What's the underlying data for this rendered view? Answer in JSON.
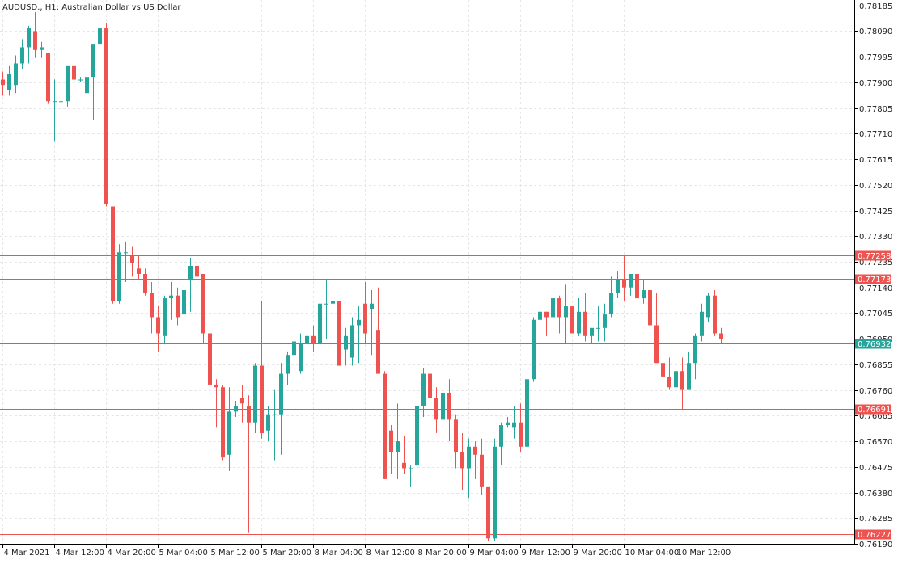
{
  "header": {
    "symbol": "AUDUSD.",
    "timeframe": "H1:",
    "description": "Australian Dollar vs US Dollar"
  },
  "colors": {
    "bull": "#26a69a",
    "bear": "#ef5350",
    "grid": "#e6e6e6",
    "axis": "#000000",
    "level_line": "#ef5350",
    "bid_line": "#26a69a"
  },
  "chart_data": {
    "type": "candlestick",
    "title": "AUDUSD., H1:  Australian Dollar vs US Dollar",
    "ylim": [
      0.7619,
      0.7819
    ],
    "grid": true,
    "y_ticks": [
      "0.78185",
      "0.78090",
      "0.77995",
      "0.77900",
      "0.77805",
      "0.77710",
      "0.77615",
      "0.77520",
      "0.77425",
      "0.77330",
      "0.77235",
      "0.77140",
      "0.77045",
      "0.76950",
      "0.76855",
      "0.76760",
      "0.76665",
      "0.76570",
      "0.76475",
      "0.76380",
      "0.76285",
      "0.76190"
    ],
    "x_ticks": [
      {
        "label": "4 Mar 2021",
        "index": 0
      },
      {
        "label": "4 Mar 12:00",
        "index": 8
      },
      {
        "label": "4 Mar 20:00",
        "index": 16
      },
      {
        "label": "5 Mar 04:00",
        "index": 24
      },
      {
        "label": "5 Mar 12:00",
        "index": 32
      },
      {
        "label": "5 Mar 20:00",
        "index": 40
      },
      {
        "label": "8 Mar 04:00",
        "index": 48
      },
      {
        "label": "8 Mar 12:00",
        "index": 56
      },
      {
        "label": "8 Mar 20:00",
        "index": 64
      },
      {
        "label": "9 Mar 04:00",
        "index": 72
      },
      {
        "label": "9 Mar 12:00",
        "index": 80
      },
      {
        "label": "9 Mar 20:00",
        "index": 88
      },
      {
        "label": "10 Mar 04:00",
        "index": 96
      },
      {
        "label": "10 Mar 12:00",
        "index": 104
      }
    ],
    "levels": [
      {
        "value": 0.77258,
        "label": "0.77258",
        "kind": "resistance"
      },
      {
        "value": 0.77173,
        "label": "0.77173",
        "kind": "resistance"
      },
      {
        "value": 0.76932,
        "label": "0.76932",
        "kind": "bid"
      },
      {
        "value": 0.76691,
        "label": "0.76691",
        "kind": "support"
      },
      {
        "value": 0.76227,
        "label": "0.76227",
        "kind": "support"
      }
    ],
    "candles": [
      [
        0.7791,
        0.7794,
        0.7785,
        0.7789
      ],
      [
        0.7787,
        0.7796,
        0.7785,
        0.7793
      ],
      [
        0.7789,
        0.78,
        0.7786,
        0.7797
      ],
      [
        0.7797,
        0.7806,
        0.7795,
        0.7803
      ],
      [
        0.7803,
        0.7811,
        0.7797,
        0.781
      ],
      [
        0.7809,
        0.7816,
        0.7799,
        0.7802
      ],
      [
        0.7802,
        0.7805,
        0.7799,
        0.7803
      ],
      [
        0.7801,
        0.7801,
        0.7782,
        0.7783
      ],
      [
        0.7783,
        0.7791,
        0.7768,
        0.7783
      ],
      [
        0.7783,
        0.7792,
        0.7769,
        0.7783
      ],
      [
        0.7783,
        0.7795,
        0.7781,
        0.7796
      ],
      [
        0.7796,
        0.78,
        0.7778,
        0.7791
      ],
      [
        0.7791,
        0.7792,
        0.779,
        0.7791
      ],
      [
        0.7786,
        0.7795,
        0.7775,
        0.7792
      ],
      [
        0.7792,
        0.7803,
        0.7776,
        0.7804
      ],
      [
        0.7804,
        0.7812,
        0.7802,
        0.781
      ],
      [
        0.781,
        0.7812,
        0.7744,
        0.7745
      ],
      [
        0.7744,
        0.7744,
        0.7708,
        0.7709
      ],
      [
        0.7709,
        0.773,
        0.7708,
        0.7727
      ],
      [
        0.7727,
        0.7731,
        0.7716,
        0.7727
      ],
      [
        0.7726,
        0.7729,
        0.7718,
        0.7723
      ],
      [
        0.7721,
        0.7726,
        0.7717,
        0.7719
      ],
      [
        0.7719,
        0.7721,
        0.7711,
        0.7712
      ],
      [
        0.7712,
        0.7716,
        0.7697,
        0.7703
      ],
      [
        0.7703,
        0.7707,
        0.769,
        0.7697
      ],
      [
        0.7696,
        0.7711,
        0.7693,
        0.771
      ],
      [
        0.771,
        0.7716,
        0.7702,
        0.7711
      ],
      [
        0.7711,
        0.7714,
        0.77,
        0.7703
      ],
      [
        0.7704,
        0.7714,
        0.7701,
        0.7713
      ],
      [
        0.7717,
        0.7725,
        0.7705,
        0.7722
      ],
      [
        0.7722,
        0.7724,
        0.7712,
        0.7718
      ],
      [
        0.7719,
        0.7719,
        0.7693,
        0.7697
      ],
      [
        0.7697,
        0.77,
        0.7671,
        0.7678
      ],
      [
        0.7678,
        0.768,
        0.7662,
        0.7677
      ],
      [
        0.7677,
        0.7678,
        0.765,
        0.7651
      ],
      [
        0.7652,
        0.7677,
        0.7646,
        0.7668
      ],
      [
        0.7668,
        0.7672,
        0.7666,
        0.767
      ],
      [
        0.7673,
        0.7678,
        0.7664,
        0.7671
      ],
      [
        0.767,
        0.7674,
        0.7623,
        0.7664
      ],
      [
        0.7664,
        0.7686,
        0.766,
        0.7685
      ],
      [
        0.7685,
        0.7709,
        0.7658,
        0.766
      ],
      [
        0.7661,
        0.767,
        0.7657,
        0.7667
      ],
      [
        0.7667,
        0.7676,
        0.765,
        0.7667
      ],
      [
        0.7667,
        0.7686,
        0.7652,
        0.7682
      ],
      [
        0.7682,
        0.769,
        0.7678,
        0.7689
      ],
      [
        0.7689,
        0.7695,
        0.7674,
        0.7694
      ],
      [
        0.7683,
        0.7697,
        0.7682,
        0.7693
      ],
      [
        0.7693,
        0.7697,
        0.769,
        0.7696
      ],
      [
        0.7696,
        0.77,
        0.769,
        0.7693
      ],
      [
        0.7693,
        0.7717,
        0.7693,
        0.7708
      ],
      [
        0.7708,
        0.7717,
        0.7695,
        0.7708
      ],
      [
        0.7708,
        0.7708,
        0.77,
        0.7709
      ],
      [
        0.7709,
        0.7709,
        0.7685,
        0.7685
      ],
      [
        0.7691,
        0.7699,
        0.7685,
        0.7696
      ],
      [
        0.7688,
        0.7703,
        0.7685,
        0.77
      ],
      [
        0.77,
        0.7707,
        0.7686,
        0.7702
      ],
      [
        0.7708,
        0.7716,
        0.7693,
        0.7697
      ],
      [
        0.7706,
        0.7713,
        0.7689,
        0.7708
      ],
      [
        0.7698,
        0.7714,
        0.7682,
        0.7682
      ],
      [
        0.7682,
        0.7683,
        0.7643,
        0.7643
      ],
      [
        0.7661,
        0.7663,
        0.7645,
        0.7653
      ],
      [
        0.7653,
        0.7671,
        0.7643,
        0.7657
      ],
      [
        0.7649,
        0.7659,
        0.7645,
        0.7647
      ],
      [
        0.7647,
        0.7648,
        0.764,
        0.7647
      ],
      [
        0.7648,
        0.7686,
        0.7645,
        0.767
      ],
      [
        0.767,
        0.7684,
        0.7666,
        0.7682
      ],
      [
        0.7682,
        0.7687,
        0.766,
        0.7673
      ],
      [
        0.7673,
        0.7677,
        0.766,
        0.7665
      ],
      [
        0.7665,
        0.7683,
        0.7651,
        0.7675
      ],
      [
        0.7675,
        0.768,
        0.7657,
        0.7665
      ],
      [
        0.7665,
        0.7667,
        0.7647,
        0.7653
      ],
      [
        0.7653,
        0.766,
        0.7639,
        0.7647
      ],
      [
        0.7647,
        0.7658,
        0.7636,
        0.7655
      ],
      [
        0.7655,
        0.7657,
        0.7643,
        0.7652
      ],
      [
        0.7652,
        0.7658,
        0.7637,
        0.764
      ],
      [
        0.764,
        0.764,
        0.762,
        0.7621
      ],
      [
        0.7621,
        0.7658,
        0.762,
        0.7655
      ],
      [
        0.7655,
        0.7664,
        0.7648,
        0.7663
      ],
      [
        0.7663,
        0.7666,
        0.7662,
        0.7664
      ],
      [
        0.7662,
        0.767,
        0.7658,
        0.7664
      ],
      [
        0.7664,
        0.7671,
        0.7653,
        0.7655
      ],
      [
        0.7655,
        0.768,
        0.7652,
        0.768
      ],
      [
        0.768,
        0.7703,
        0.7679,
        0.7702
      ],
      [
        0.7702,
        0.7707,
        0.7695,
        0.7705
      ],
      [
        0.7705,
        0.7705,
        0.7696,
        0.7703
      ],
      [
        0.7703,
        0.7718,
        0.77,
        0.771
      ],
      [
        0.771,
        0.7711,
        0.7697,
        0.7703
      ],
      [
        0.7703,
        0.7715,
        0.7693,
        0.7707
      ],
      [
        0.7707,
        0.7707,
        0.7697,
        0.7697
      ],
      [
        0.7697,
        0.771,
        0.7696,
        0.7705
      ],
      [
        0.7705,
        0.7712,
        0.7694,
        0.7696
      ],
      [
        0.7696,
        0.7697,
        0.7693,
        0.7699
      ],
      [
        0.7699,
        0.7707,
        0.7694,
        0.7699
      ],
      [
        0.7699,
        0.7708,
        0.7694,
        0.7704
      ],
      [
        0.7704,
        0.7718,
        0.7703,
        0.7712
      ],
      [
        0.7712,
        0.772,
        0.771,
        0.7717
      ],
      [
        0.7717,
        0.7726,
        0.7709,
        0.7714
      ],
      [
        0.7714,
        0.7718,
        0.7711,
        0.7719
      ],
      [
        0.7719,
        0.7721,
        0.7703,
        0.771
      ],
      [
        0.771,
        0.7717,
        0.7708,
        0.7713
      ],
      [
        0.7713,
        0.7716,
        0.7698,
        0.77
      ],
      [
        0.77,
        0.7712,
        0.7686,
        0.7686
      ],
      [
        0.7686,
        0.7688,
        0.7678,
        0.7681
      ],
      [
        0.7681,
        0.7688,
        0.7676,
        0.7677
      ],
      [
        0.7677,
        0.7685,
        0.7679,
        0.7683
      ],
      [
        0.7683,
        0.7688,
        0.7669,
        0.7676
      ],
      [
        0.7676,
        0.769,
        0.7676,
        0.7686
      ],
      [
        0.7686,
        0.7697,
        0.768,
        0.7696
      ],
      [
        0.7696,
        0.7708,
        0.7694,
        0.7705
      ],
      [
        0.7703,
        0.7712,
        0.7701,
        0.7711
      ],
      [
        0.7711,
        0.7713,
        0.7696,
        0.7697
      ],
      [
        0.7697,
        0.7699,
        0.7693,
        0.7695
      ]
    ]
  }
}
